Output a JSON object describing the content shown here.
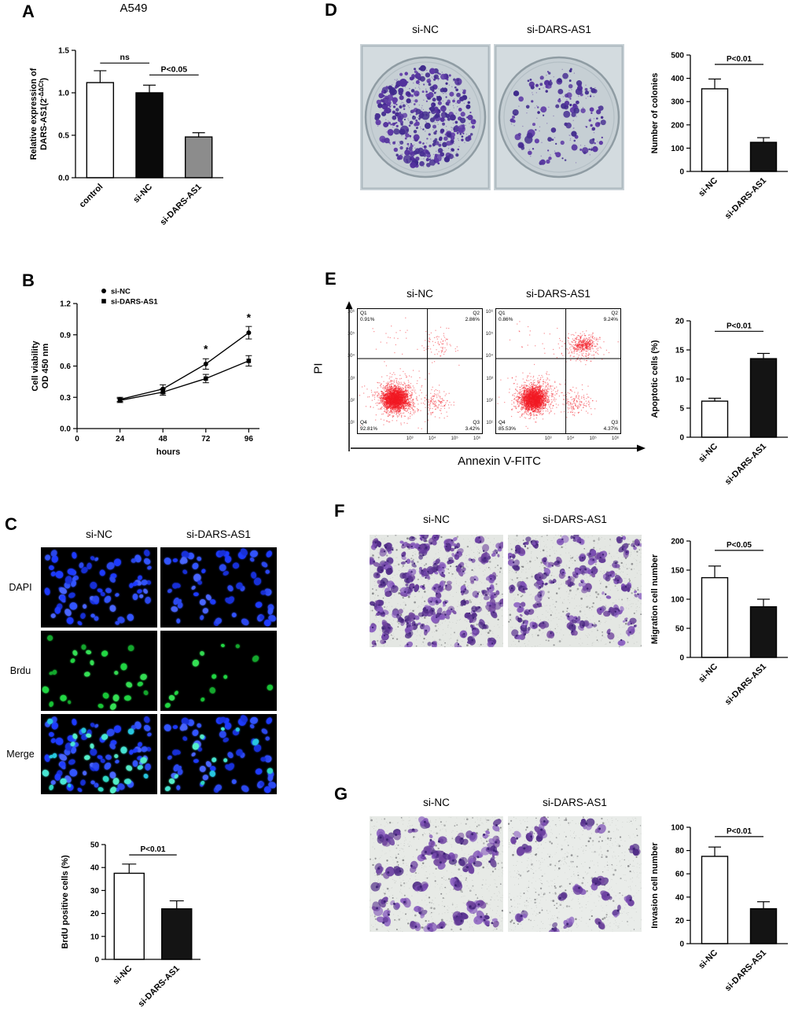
{
  "groups": {
    "control": "control",
    "nc": "si-NC",
    "kd": "si-DARS-AS1"
  },
  "panels": {
    "A": {
      "letter": "A"
    },
    "B": {
      "letter": "B"
    },
    "C": {
      "letter": "C",
      "columns": [
        "si-NC",
        "si-DARS-AS1"
      ],
      "rows": [
        "DAPI",
        "Brdu",
        "Merge"
      ]
    },
    "D": {
      "letter": "D",
      "columns": [
        "si-NC",
        "si-DARS-AS1"
      ]
    },
    "E": {
      "letter": "E",
      "columns": [
        "si-NC",
        "si-DARS-AS1"
      ],
      "ylabel": "PI",
      "xlabel": "Annexin V-FITC",
      "ticks_y": [
        "10⁶",
        "10⁵",
        "10⁴",
        "10³",
        "10²",
        "10¹"
      ],
      "ticks_x": [
        "10³",
        "10⁴",
        "10⁵",
        "10⁶"
      ],
      "plots": [
        {
          "name": "si-NC",
          "q1": "Q1",
          "q1v": "0.91%",
          "q2": "Q2",
          "q2v": "2.86%",
          "q3": "Q3",
          "q3v": "3.42%",
          "q4": "Q4",
          "q4v": "92.81%"
        },
        {
          "name": "si-DARS-AS1",
          "q1": "Q1",
          "q1v": "0.86%",
          "q2": "Q2",
          "q2v": "9.24%",
          "q3": "Q3",
          "q3v": "4.37%",
          "q4": "Q4",
          "q4v": "85.53%"
        }
      ]
    },
    "F": {
      "letter": "F",
      "columns": [
        "si-NC",
        "si-DARS-AS1"
      ]
    },
    "G": {
      "letter": "G",
      "columns": [
        "si-NC",
        "si-DARS-AS1"
      ]
    }
  },
  "chart_data": [
    {
      "id": "A_expression",
      "type": "bar",
      "title": "A549",
      "categories": [
        "control",
        "si-NC",
        "si-DARS-AS1"
      ],
      "values": [
        1.12,
        1.0,
        0.48
      ],
      "errors": [
        0.14,
        0.09,
        0.05
      ],
      "bar_colors": [
        "#ffffff",
        "#0a0a0a",
        "#8c8c8c"
      ],
      "ylabel": "Relative expression of\nDARS-AS1(2^{-ΔΔCt})",
      "ylim": [
        0,
        1.5
      ],
      "yticks": [
        0,
        0.5,
        1.0,
        1.5
      ],
      "ytick_labels": [
        "0.0",
        "0.5",
        "1.0",
        "1.5"
      ],
      "annotations": [
        {
          "text": "ns",
          "from": 0,
          "to": 1,
          "y": 1.35
        },
        {
          "text": "P<0.05",
          "from": 1,
          "to": 2,
          "y": 1.21
        }
      ]
    },
    {
      "id": "B_viability",
      "type": "line",
      "xlabel": "hours",
      "ylabel": "Cell viability\nOD 450 nm",
      "x": [
        24,
        48,
        72,
        96
      ],
      "xticks": [
        0,
        24,
        48,
        72,
        96
      ],
      "xlim": [
        0,
        102
      ],
      "ylim": [
        0,
        1.2
      ],
      "yticks": [
        0,
        0.3,
        0.6,
        0.9,
        1.2
      ],
      "ytick_labels": [
        "0.0",
        "0.3",
        "0.6",
        "0.9",
        "1.2"
      ],
      "legend_position": "top-left",
      "series": [
        {
          "name": "si-NC",
          "marker": "circle",
          "values": [
            0.28,
            0.38,
            0.62,
            0.92
          ],
          "errors": [
            0.02,
            0.04,
            0.05,
            0.06
          ]
        },
        {
          "name": "si-DARS-AS1",
          "marker": "square",
          "values": [
            0.27,
            0.35,
            0.48,
            0.65
          ],
          "errors": [
            0.02,
            0.03,
            0.04,
            0.05
          ]
        }
      ],
      "sig": [
        {
          "x": 72,
          "y": 0.73,
          "text": "*"
        },
        {
          "x": 96,
          "y": 1.03,
          "text": "*"
        }
      ]
    },
    {
      "id": "C_brdu",
      "type": "bar",
      "categories": [
        "si-NC",
        "si-DARS-AS1"
      ],
      "values": [
        37.5,
        22
      ],
      "errors": [
        4,
        3.5
      ],
      "bar_colors": [
        "#ffffff",
        "#141414"
      ],
      "ylabel": "BrdU positive cells (%)",
      "ylim": [
        0,
        50
      ],
      "yticks": [
        0,
        10,
        20,
        30,
        40,
        50
      ],
      "annotations": [
        {
          "text": "P<0.01",
          "from": 0,
          "to": 1,
          "y": 45.5
        }
      ]
    },
    {
      "id": "D_colonies",
      "type": "bar",
      "categories": [
        "si-NC",
        "si-DARS-AS1"
      ],
      "values": [
        355,
        125
      ],
      "errors": [
        42,
        20
      ],
      "bar_colors": [
        "#ffffff",
        "#141414"
      ],
      "ylabel": "Number of colonies",
      "ylim": [
        0,
        500
      ],
      "yticks": [
        0,
        100,
        200,
        300,
        400,
        500
      ],
      "annotations": [
        {
          "text": "P<0.01",
          "from": 0,
          "to": 1,
          "y": 460
        }
      ]
    },
    {
      "id": "E_apoptosis",
      "type": "bar",
      "categories": [
        "si-NC",
        "si-DARS-AS1"
      ],
      "values": [
        6.2,
        13.5
      ],
      "errors": [
        0.5,
        0.9
      ],
      "bar_colors": [
        "#ffffff",
        "#141414"
      ],
      "ylabel": "Apoptotic cells (%)",
      "ylim": [
        0,
        20
      ],
      "yticks": [
        0,
        5,
        10,
        15,
        20
      ],
      "annotations": [
        {
          "text": "P<0.01",
          "from": 0,
          "to": 1,
          "y": 18.2
        }
      ]
    },
    {
      "id": "F_migration",
      "type": "bar",
      "categories": [
        "si-NC",
        "si-DARS-AS1"
      ],
      "values": [
        137,
        87
      ],
      "errors": [
        20,
        13
      ],
      "bar_colors": [
        "#ffffff",
        "#141414"
      ],
      "ylabel": "Migration cell number",
      "ylim": [
        0,
        200
      ],
      "yticks": [
        0,
        50,
        100,
        150,
        200
      ],
      "annotations": [
        {
          "text": "P<0.05",
          "from": 0,
          "to": 1,
          "y": 184
        }
      ]
    },
    {
      "id": "G_invasion",
      "type": "bar",
      "categories": [
        "si-NC",
        "si-DARS-AS1"
      ],
      "values": [
        75,
        30
      ],
      "errors": [
        8,
        6
      ],
      "bar_colors": [
        "#ffffff",
        "#141414"
      ],
      "ylabel": "Invasion cell number",
      "ylim": [
        0,
        100
      ],
      "yticks": [
        0,
        20,
        40,
        60,
        80,
        100
      ],
      "annotations": [
        {
          "text": "P<0.01",
          "from": 0,
          "to": 1,
          "y": 92
        }
      ]
    }
  ]
}
